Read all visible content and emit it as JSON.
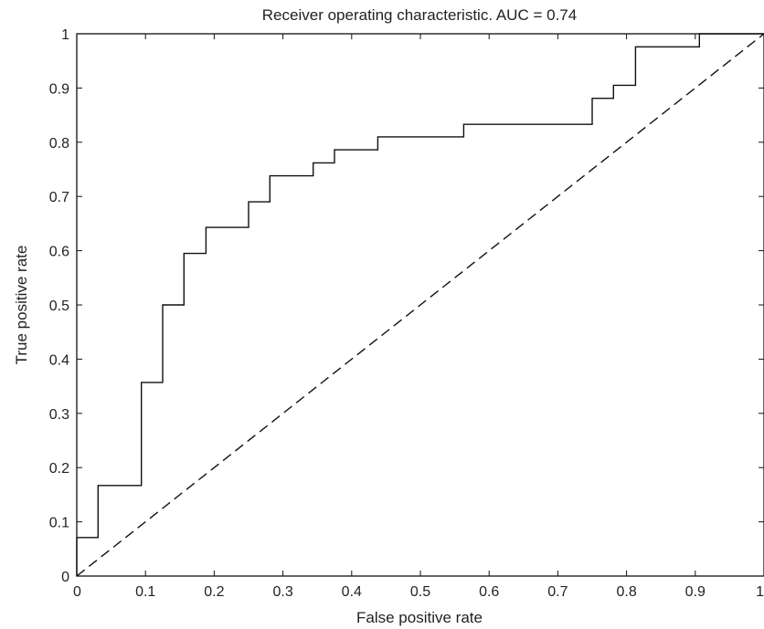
{
  "chart_data": {
    "type": "line",
    "title": "Receiver operating characteristic. AUC = 0.74",
    "xlabel": "False positive rate",
    "ylabel": "True positive rate",
    "xlim": [
      0,
      1
    ],
    "ylim": [
      0,
      1
    ],
    "xticks": [
      {
        "value": 0,
        "label": "0"
      },
      {
        "value": 0.1,
        "label": "0.1"
      },
      {
        "value": 0.2,
        "label": "0.2"
      },
      {
        "value": 0.3,
        "label": "0.3"
      },
      {
        "value": 0.4,
        "label": "0.4"
      },
      {
        "value": 0.5,
        "label": "0.5"
      },
      {
        "value": 0.6,
        "label": "0.6"
      },
      {
        "value": 0.7,
        "label": "0.7"
      },
      {
        "value": 0.8,
        "label": "0.8"
      },
      {
        "value": 0.9,
        "label": "0.9"
      },
      {
        "value": 1,
        "label": "1"
      }
    ],
    "yticks": [
      {
        "value": 0,
        "label": "0"
      },
      {
        "value": 0.1,
        "label": "0.1"
      },
      {
        "value": 0.2,
        "label": "0.2"
      },
      {
        "value": 0.3,
        "label": "0.3"
      },
      {
        "value": 0.4,
        "label": "0.4"
      },
      {
        "value": 0.5,
        "label": "0.5"
      },
      {
        "value": 0.6,
        "label": "0.6"
      },
      {
        "value": 0.7,
        "label": "0.7"
      },
      {
        "value": 0.8,
        "label": "0.8"
      },
      {
        "value": 0.9,
        "label": "0.9"
      },
      {
        "value": 1,
        "label": "1"
      }
    ],
    "grid": false,
    "series": [
      {
        "style": "solid",
        "color": "#111111",
        "x": [
          0,
          0,
          0.031,
          0.031,
          0.094,
          0.094,
          0.125,
          0.125,
          0.156,
          0.156,
          0.188,
          0.188,
          0.25,
          0.25,
          0.281,
          0.281,
          0.344,
          0.344,
          0.375,
          0.375,
          0.438,
          0.438,
          0.563,
          0.563,
          0.75,
          0.75,
          0.781,
          0.781,
          0.813,
          0.813,
          0.906,
          0.906,
          1
        ],
        "y": [
          0,
          0.071,
          0.071,
          0.167,
          0.167,
          0.357,
          0.357,
          0.5,
          0.5,
          0.595,
          0.595,
          0.643,
          0.643,
          0.69,
          0.69,
          0.738,
          0.738,
          0.762,
          0.762,
          0.786,
          0.786,
          0.81,
          0.81,
          0.833,
          0.833,
          0.881,
          0.881,
          0.905,
          0.905,
          0.976,
          0.976,
          1,
          1
        ]
      },
      {
        "style": "dashed",
        "color": "#111111",
        "x": [
          0,
          1
        ],
        "y": [
          0,
          1
        ]
      }
    ]
  }
}
